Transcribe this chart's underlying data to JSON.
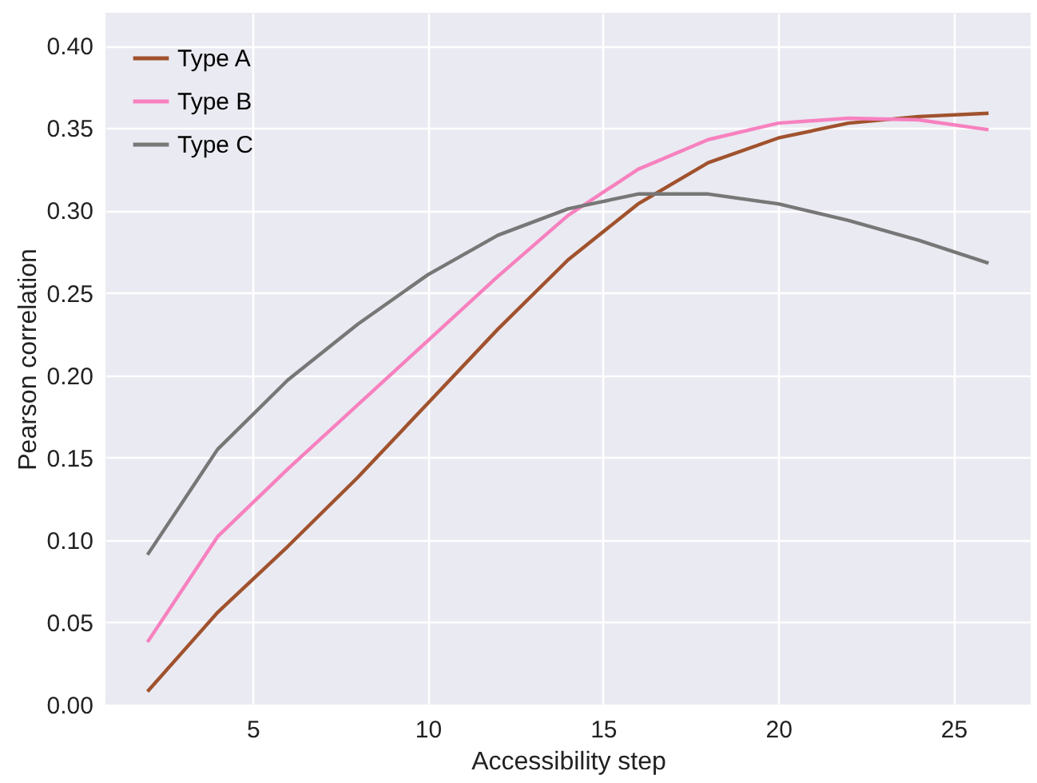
{
  "chart_data": {
    "type": "line",
    "xlabel": "Accessibility step",
    "ylabel": "Pearson correlation",
    "x": [
      2,
      4,
      6,
      8,
      10,
      12,
      14,
      16,
      18,
      20,
      22,
      24,
      26
    ],
    "series": [
      {
        "name": "Type A",
        "color": "#a0522d",
        "values": [
          0.008,
          0.056,
          0.096,
          0.138,
          0.183,
          0.228,
          0.27,
          0.304,
          0.329,
          0.344,
          0.353,
          0.357,
          0.359
        ]
      },
      {
        "name": "Type B",
        "color": "#f781bf",
        "values": [
          0.038,
          0.102,
          0.143,
          0.182,
          0.221,
          0.26,
          0.297,
          0.325,
          0.343,
          0.353,
          0.356,
          0.355,
          0.349
        ]
      },
      {
        "name": "Type C",
        "color": "#777777",
        "values": [
          0.091,
          0.155,
          0.197,
          0.231,
          0.261,
          0.285,
          0.301,
          0.31,
          0.31,
          0.304,
          0.294,
          0.282,
          0.268
        ]
      }
    ],
    "xlim": [
      0.8,
      27.2
    ],
    "xticks": [
      5,
      10,
      15,
      20,
      25
    ],
    "ylim": [
      0,
      0.42
    ],
    "yticks": [
      {
        "value": 0,
        "label": "0.00"
      },
      0.05,
      {
        "value": 0.1,
        "label": "0.10"
      },
      0.15,
      {
        "value": 0.2,
        "label": "0.20"
      },
      0.25,
      {
        "value": 0.3,
        "label": "0.30"
      },
      0.35,
      {
        "value": 0.4,
        "label": "0.40"
      }
    ],
    "grid": true,
    "legend": "top left",
    "marker": "none",
    "line_style": "solid"
  }
}
